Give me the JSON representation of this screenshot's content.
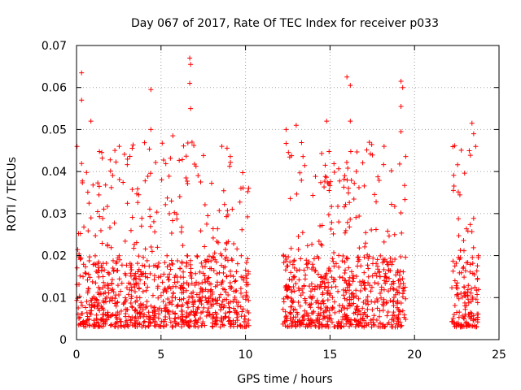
{
  "chart_data": {
    "type": "scatter",
    "title": "Day 067 of 2017, Rate Of TEC Index for receiver p033",
    "xlabel": "GPS time / hours",
    "ylabel": "ROTI / TECUs",
    "xlim": [
      0,
      25
    ],
    "ylim": [
      0,
      0.07
    ],
    "x_ticks": [
      0,
      5,
      10,
      15,
      20,
      25
    ],
    "x_tick_labels": [
      "0",
      "5",
      "10",
      "15",
      "20",
      "25"
    ],
    "y_ticks": [
      0,
      0.01,
      0.02,
      0.03,
      0.04,
      0.05,
      0.06,
      0.07
    ],
    "y_tick_labels": [
      "0",
      "0.01",
      "0.02",
      "0.03",
      "0.04",
      "0.05",
      "0.06",
      "0.07"
    ],
    "grid": true,
    "marker": "+",
    "color": "#ff0000",
    "series": [
      {
        "name": "ROTI",
        "segments": [
          {
            "x_range": [
              0.0,
              10.2
            ],
            "y_typical": [
              0.003,
              0.02
            ]
          },
          {
            "x_range": [
              12.2,
              19.5
            ],
            "y_typical": [
              0.003,
              0.02
            ]
          },
          {
            "x_range": [
              22.2,
              23.8
            ],
            "y_typical": [
              0.003,
              0.02
            ]
          }
        ],
        "peaks": [
          [
            0.3,
            0.0635
          ],
          [
            0.3,
            0.057
          ],
          [
            0.85,
            0.052
          ],
          [
            4.4,
            0.0595
          ],
          [
            4.4,
            0.05
          ],
          [
            5.7,
            0.0485
          ],
          [
            6.7,
            0.067
          ],
          [
            6.75,
            0.0655
          ],
          [
            6.7,
            0.061
          ],
          [
            6.75,
            0.055
          ],
          [
            8.6,
            0.046
          ],
          [
            12.4,
            0.05
          ],
          [
            13.0,
            0.051
          ],
          [
            14.8,
            0.052
          ],
          [
            16.0,
            0.0625
          ],
          [
            16.2,
            0.0605
          ],
          [
            16.2,
            0.052
          ],
          [
            18.2,
            0.046
          ],
          [
            19.2,
            0.0615
          ],
          [
            19.3,
            0.06
          ],
          [
            19.2,
            0.0555
          ],
          [
            19.2,
            0.0495
          ],
          [
            22.3,
            0.0355
          ],
          [
            23.4,
            0.0515
          ],
          [
            23.5,
            0.049
          ]
        ]
      }
    ]
  }
}
